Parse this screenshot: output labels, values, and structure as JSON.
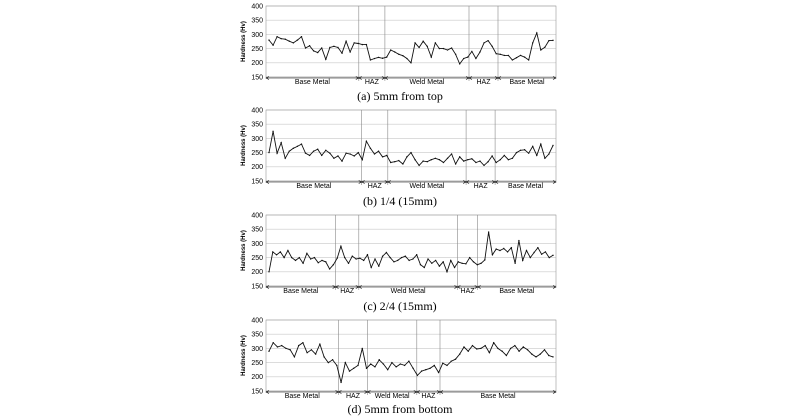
{
  "chart_data": [
    {
      "type": "line",
      "title": "(a) 5mm from top",
      "ylabel": "Hardness (Hv)",
      "ylim": [
        150,
        400
      ],
      "yticks": [
        150,
        200,
        250,
        300,
        350,
        400
      ],
      "grid": true,
      "zones": [
        "Base Metal",
        "HAZ",
        "Weld Metal",
        "HAZ",
        "Base Metal"
      ],
      "boundaries": [
        0.32,
        0.41,
        0.7,
        0.8
      ],
      "series": [
        {
          "values": [
            280,
            262,
            292,
            285,
            283,
            276,
            270,
            280,
            292,
            252,
            260,
            242,
            236,
            252,
            212,
            254,
            258,
            254,
            234,
            276,
            238,
            270,
            268,
            264,
            264,
            210,
            215,
            219,
            216,
            220,
            245,
            238,
            230,
            225,
            215,
            200,
            270,
            254,
            276,
            258,
            220,
            270,
            250,
            250,
            245,
            252,
            230,
            196,
            215,
            220,
            240,
            215,
            238,
            270,
            278,
            258,
            232,
            230,
            226,
            226,
            210,
            218,
            226,
            220,
            210,
            270,
            305,
            245,
            255,
            278,
            279
          ]
        }
      ]
    },
    {
      "type": "line",
      "title": "(b) 1/4 (15mm)",
      "ylabel": "Hardness (Hv)",
      "ylim": [
        150,
        400
      ],
      "yticks": [
        150,
        200,
        250,
        300,
        350,
        400
      ],
      "grid": true,
      "zones": [
        "Base Metal",
        "HAZ",
        "Weld Metal",
        "HAZ",
        "Base Metal"
      ],
      "boundaries": [
        0.33,
        0.42,
        0.69,
        0.79
      ],
      "series": [
        {
          "values": [
            250,
            325,
            248,
            285,
            230,
            255,
            265,
            272,
            280,
            248,
            240,
            255,
            262,
            240,
            258,
            248,
            230,
            238,
            220,
            248,
            245,
            238,
            250,
            225,
            290,
            265,
            245,
            255,
            235,
            240,
            215,
            218,
            222,
            210,
            235,
            250,
            225,
            205,
            220,
            218,
            225,
            230,
            225,
            215,
            230,
            245,
            210,
            235,
            220,
            225,
            228,
            215,
            220,
            205,
            218,
            238,
            215,
            225,
            240,
            225,
            230,
            250,
            258,
            260,
            248,
            272,
            240,
            280,
            230,
            245,
            275
          ]
        }
      ]
    },
    {
      "type": "line",
      "title": "(c) 2/4 (15mm)",
      "ylabel": "Hardness (Hv)",
      "ylim": [
        150,
        400
      ],
      "yticks": [
        150,
        200,
        250,
        300,
        350,
        400
      ],
      "grid": true,
      "zones": [
        "Base Metal",
        "HAZ",
        "Weld Metal",
        "HAZ",
        "Base Metal"
      ],
      "boundaries": [
        0.24,
        0.32,
        0.66,
        0.73
      ],
      "series": [
        {
          "values": [
            200,
            270,
            260,
            270,
            250,
            275,
            250,
            240,
            250,
            230,
            265,
            245,
            250,
            232,
            240,
            235,
            210,
            225,
            248,
            290,
            250,
            230,
            255,
            245,
            248,
            240,
            260,
            215,
            245,
            220,
            255,
            268,
            250,
            235,
            240,
            250,
            255,
            240,
            245,
            260,
            225,
            215,
            245,
            230,
            240,
            220,
            235,
            200,
            240,
            215,
            235,
            230,
            228,
            250,
            235,
            225,
            230,
            242,
            340,
            260,
            280,
            275,
            282,
            270,
            285,
            230,
            310,
            240,
            275,
            250,
            268,
            285,
            262,
            270,
            250,
            258
          ]
        }
      ]
    },
    {
      "type": "line",
      "title": "(d) 5mm from bottom",
      "ylabel": "Hardness (Hv)",
      "ylim": [
        150,
        400
      ],
      "yticks": [
        150,
        200,
        250,
        300,
        350,
        400
      ],
      "grid": true,
      "zones": [
        "Base Metal",
        "HAZ",
        "Weld Metal",
        "HAZ",
        "Base Metal"
      ],
      "boundaries": [
        0.25,
        0.35,
        0.52,
        0.6
      ],
      "series": [
        {
          "values": [
            290,
            320,
            305,
            310,
            300,
            295,
            270,
            310,
            320,
            285,
            295,
            280,
            315,
            270,
            250,
            260,
            240,
            180,
            250,
            220,
            230,
            240,
            300,
            230,
            245,
            235,
            260,
            245,
            225,
            250,
            235,
            245,
            240,
            255,
            230,
            205,
            220,
            225,
            230,
            240,
            215,
            248,
            240,
            255,
            262,
            280,
            305,
            290,
            310,
            298,
            300,
            310,
            285,
            320,
            300,
            290,
            275,
            300,
            310,
            290,
            305,
            295,
            280,
            270,
            280,
            295,
            275,
            270
          ]
        }
      ]
    }
  ]
}
